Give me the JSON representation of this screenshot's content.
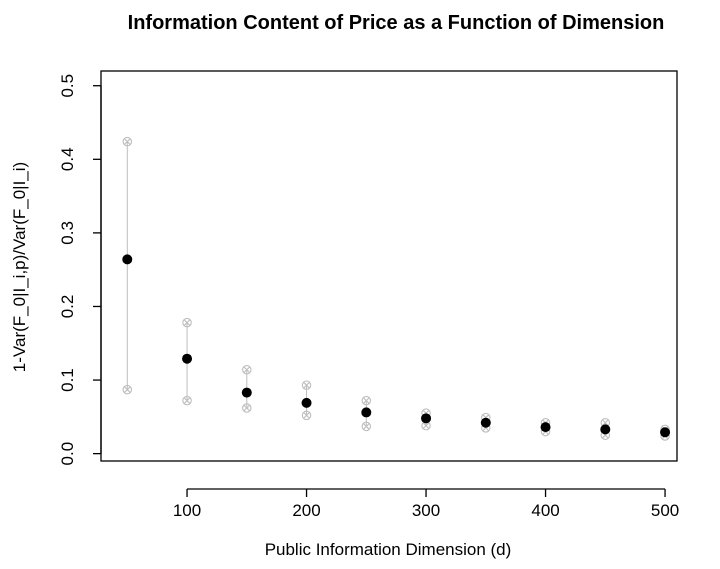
{
  "chart_data": {
    "type": "scatter",
    "title": "Information Content of Price as a Function of Dimension",
    "xlabel": "Public Information Dimension (d)",
    "ylabel": "1-Var(F_0|I_i,p)/Var(F_0|I_i)",
    "xlim": [
      28,
      510
    ],
    "ylim": [
      -0.01,
      0.52
    ],
    "xticks": [
      100,
      200,
      300,
      400,
      500
    ],
    "xtick_labels": [
      "100",
      "200",
      "300",
      "400",
      "500"
    ],
    "yticks": [
      0.0,
      0.1,
      0.2,
      0.3,
      0.4,
      0.5
    ],
    "ytick_labels": [
      "0.0",
      "0.1",
      "0.2",
      "0.3",
      "0.4",
      "0.5"
    ],
    "grid": false,
    "legend": "none",
    "x": [
      50,
      100,
      150,
      200,
      250,
      300,
      350,
      400,
      450,
      500
    ],
    "series": [
      {
        "values": [
          0.264,
          0.129,
          0.083,
          0.069,
          0.056,
          0.048,
          0.042,
          0.036,
          0.033,
          0.029
        ],
        "marker": "filled-circle",
        "color": "#000000"
      },
      {
        "values": [
          0.424,
          0.178,
          0.114,
          0.093,
          0.072,
          0.055,
          0.049,
          0.042,
          0.042,
          0.033
        ],
        "marker": "circled-x",
        "color": "#bdbdbd"
      },
      {
        "values": [
          0.087,
          0.072,
          0.062,
          0.052,
          0.037,
          0.038,
          0.035,
          0.03,
          0.025,
          0.024
        ],
        "marker": "circled-x",
        "color": "#bdbdbd"
      }
    ],
    "error_bar_color": "#bdbdbd"
  }
}
